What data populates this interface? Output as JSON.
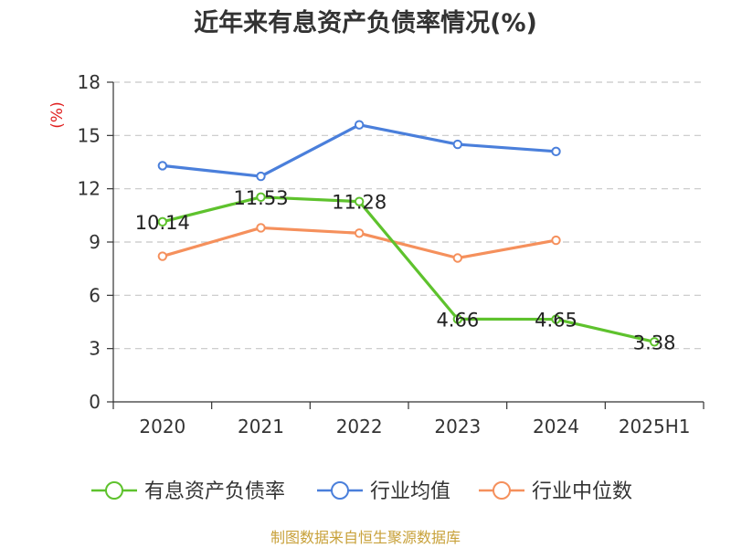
{
  "chart_data": {
    "type": "line",
    "title": "近年来有息资产负债率情况(%)",
    "ylabel": "(%)",
    "xlabel": "",
    "categories": [
      "2020",
      "2021",
      "2022",
      "2023",
      "2024",
      "2025H1"
    ],
    "ylim": [
      0,
      18
    ],
    "yticks": [
      0,
      3,
      6,
      9,
      12,
      15,
      18
    ],
    "grid": true,
    "legend_position": "bottom",
    "series": [
      {
        "name": "有息资产负债率",
        "color": "#5ec22d",
        "values": [
          10.14,
          11.53,
          11.28,
          4.66,
          4.65,
          3.38
        ],
        "labels": [
          "10.14",
          "11.53",
          "11.28",
          "4.66",
          "4.65",
          "3.38"
        ]
      },
      {
        "name": "行业均值",
        "color": "#4a7fdb",
        "values": [
          13.3,
          12.7,
          15.6,
          14.5,
          14.1,
          null
        ]
      },
      {
        "name": "行业中位数",
        "color": "#f5905c",
        "values": [
          8.2,
          9.8,
          9.5,
          8.1,
          9.1,
          null
        ]
      }
    ]
  },
  "source": "制图数据来自恒生聚源数据库"
}
